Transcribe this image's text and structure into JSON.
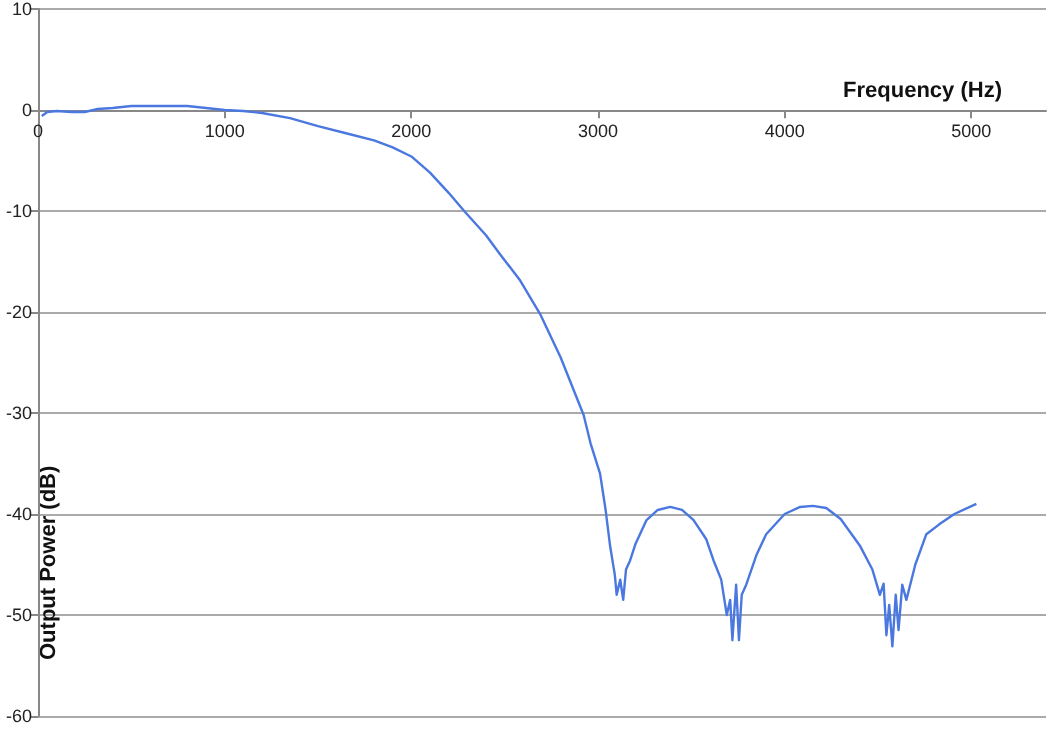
{
  "chart_data": {
    "type": "line",
    "xlabel": "Frequency (Hz)",
    "ylabel": "Output Power (dB)",
    "xlim": [
      0,
      5400
    ],
    "xticks": [
      0,
      1000,
      2000,
      3000,
      4000,
      5000
    ],
    "ylim": [
      -60,
      10
    ],
    "yticks": [
      -60,
      -50,
      -40,
      -30,
      -20,
      -10,
      0,
      10
    ],
    "grid": "y",
    "marker": "none",
    "line_style": "solid",
    "series": [
      {
        "color": "#4a78e0",
        "x": [
          20,
          50,
          100,
          180,
          250,
          320,
          400,
          500,
          600,
          700,
          800,
          900,
          1000,
          1100,
          1200,
          1350,
          1500,
          1650,
          1800,
          1900,
          2000,
          2100,
          2200,
          2283,
          2400,
          2476,
          2580,
          2690,
          2800,
          2923,
          2960,
          3011,
          3040,
          3065,
          3090,
          3100,
          3119,
          3135,
          3150,
          3172,
          3200,
          3260,
          3320,
          3387,
          3450,
          3512,
          3580,
          3619,
          3660,
          3690,
          3708,
          3720,
          3740,
          3755,
          3770,
          3794,
          3850,
          3901,
          4000,
          4083,
          4150,
          4223,
          4300,
          4405,
          4470,
          4510,
          4530,
          4545,
          4560,
          4577,
          4595,
          4610,
          4630,
          4652,
          4700,
          4759,
          4830,
          4909,
          5027
        ],
        "values": [
          -0.6,
          -0.2,
          -0.1,
          -0.2,
          -0.2,
          0.1,
          0.2,
          0.4,
          0.4,
          0.4,
          0.4,
          0.2,
          0,
          -0.1,
          -0.3,
          -0.8,
          -1.6,
          -2.3,
          -3,
          -3.7,
          -4.6,
          -6.2,
          -8.2,
          -10,
          -12.4,
          -14.3,
          -16.8,
          -20.2,
          -24.5,
          -30.2,
          -33,
          -36,
          -39.5,
          -43.2,
          -46,
          -48,
          -46.5,
          -48.5,
          -45.5,
          -44.6,
          -43,
          -40.6,
          -39.6,
          -39.3,
          -39.6,
          -40.6,
          -42.5,
          -44.6,
          -46.5,
          -50,
          -48.5,
          -52.5,
          -47,
          -52.5,
          -48,
          -47,
          -44,
          -42,
          -40,
          -39.3,
          -39.2,
          -39.4,
          -40.5,
          -43.2,
          -45.5,
          -48,
          -46.9,
          -52,
          -49,
          -53.1,
          -48,
          -51.5,
          -47,
          -48.5,
          -45,
          -42,
          -41,
          -40,
          -39
        ]
      }
    ]
  }
}
